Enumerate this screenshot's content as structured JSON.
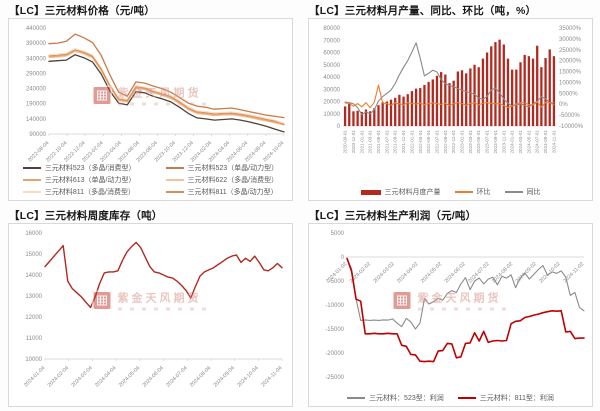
{
  "watermark": {
    "brand": "紫金天风期货"
  },
  "chart_data": [
    {
      "id": "price",
      "type": "line",
      "title": "【LC】三元材料价格（元/吨）",
      "unit": "元/吨",
      "ylim": [
        90000,
        440000
      ],
      "yticks": [
        440000,
        390000,
        340000,
        290000,
        240000,
        190000,
        140000,
        90000
      ],
      "grid": false,
      "legend_position": "bottom",
      "x_labels": [
        "2022-08-04",
        "2022-10-04",
        "2022-12-04",
        "2023-02-04",
        "2023-04-04",
        "2023-06-04",
        "2023-08-04",
        "2023-10-04",
        "2023-12-04",
        "2024-02-04",
        "2024-04-04",
        "2024-06-04",
        "2024-08-04",
        "2024-10-04"
      ],
      "series": [
        {
          "name": "三元材料811（多晶/消费型）",
          "color": "#f7dcc2",
          "width": 1,
          "values": [
            352000,
            354000,
            357000,
            372000,
            364000,
            351000,
            309000,
            254000,
            210000,
            205000,
            250000,
            246000,
            235000,
            227000,
            217000,
            200000,
            180000,
            167000,
            164000,
            160000,
            162000,
            163000,
            159000,
            154000,
            148000,
            142000,
            135000,
            127000
          ]
        },
        {
          "name": "三元材料622（多晶/消费型）",
          "color": "#f2c49e",
          "width": 1,
          "values": [
            342000,
            344000,
            347000,
            362000,
            354000,
            341000,
            299000,
            244000,
            200000,
            195000,
            240000,
            236000,
            225000,
            217000,
            207000,
            190000,
            170000,
            157000,
            154000,
            150000,
            152000,
            153000,
            149000,
            144000,
            138000,
            132000,
            126000,
            119000
          ]
        },
        {
          "name": "三元材料613（单晶/动力型）",
          "color": "#e8a26c",
          "width": 1,
          "values": [
            345000,
            347000,
            350000,
            366000,
            357000,
            344000,
            302000,
            247000,
            203000,
            198000,
            243000,
            239000,
            228000,
            220000,
            210000,
            193000,
            173000,
            160000,
            157000,
            153000,
            155000,
            156000,
            152000,
            147000,
            141000,
            135000,
            129000,
            123000
          ]
        },
        {
          "name": "三元材料811（多晶/动力型）",
          "color": "#d98f56",
          "width": 1,
          "values": [
            348000,
            350000,
            353000,
            368000,
            360000,
            347000,
            305000,
            250000,
            206000,
            201000,
            246000,
            242000,
            231000,
            223000,
            213000,
            196000,
            176000,
            163000,
            160000,
            156000,
            158000,
            159000,
            155000,
            150000,
            144000,
            138000,
            132000,
            121000
          ]
        },
        {
          "name": "三元材料523（单晶/动力型）",
          "color": "#c97b49",
          "width": 1.3,
          "values": [
            388000,
            390000,
            396000,
            420000,
            408000,
            392000,
            350000,
            285000,
            228000,
            215000,
            262000,
            258000,
            248000,
            240000,
            228000,
            210000,
            192000,
            182000,
            178000,
            172000,
            174000,
            176000,
            170000,
            164000,
            158000,
            152000,
            148000,
            144000
          ]
        },
        {
          "name": "三元材料523（多晶/消费型）",
          "color": "#4f423b",
          "width": 1.3,
          "values": [
            330000,
            332000,
            334000,
            352000,
            342000,
            328000,
            288000,
            232000,
            192000,
            186000,
            230000,
            226000,
            214000,
            206000,
            196000,
            178000,
            158000,
            143000,
            140000,
            136000,
            138000,
            140000,
            136000,
            130000,
            123000,
            115000,
            106000,
            97000
          ]
        }
      ],
      "legend": [
        {
          "label": "三元材料523（多晶/消费型）",
          "color": "#4f423b",
          "swatch": "line"
        },
        {
          "label": "三元材料523（单晶/动力型）",
          "color": "#c97b49",
          "swatch": "line"
        },
        {
          "label": "三元材料613（单晶/动力型）",
          "color": "#e8a26c",
          "swatch": "line"
        },
        {
          "label": "三元材料622（多晶/消费型）",
          "color": "#f2c49e",
          "swatch": "line"
        },
        {
          "label": "三元材料811（多晶/消费型）",
          "color": "#f7dcc2",
          "swatch": "line"
        },
        {
          "label": "三元材料811（多晶/动力型）",
          "color": "#d98f56",
          "swatch": "line"
        }
      ]
    },
    {
      "id": "production",
      "type": "bar",
      "title": "【LC】三元材料月产量、同比、环比（吨，%）",
      "unit": "吨，%",
      "ylim": [
        0,
        80000
      ],
      "yticks": [
        80000,
        70000,
        60000,
        50000,
        40000,
        30000,
        20000,
        10000,
        0
      ],
      "y2lim": [
        -10000,
        35000
      ],
      "y2ticks": [
        35000,
        30000,
        25000,
        20000,
        15000,
        10000,
        5000,
        0,
        -5000,
        -10000
      ],
      "y2suffix": "%",
      "baseline": 0,
      "x_labels": [
        "2020-09-01",
        "2020-11-01",
        "2021-01-01",
        "2021-03-01",
        "2021-05-01",
        "2021-07-01",
        "2021-09-01",
        "2021-11-01",
        "2022-01-01",
        "2022-03-01",
        "2022-05-01",
        "2022-07-01",
        "2022-09-01",
        "2022-11-01",
        "2023-01-01",
        "2023-03-01",
        "2023-05-01",
        "2023-07-01",
        "2023-09-01",
        "2023-11-01",
        "2024-01-01",
        "2024-03-01",
        "2024-05-01",
        "2024-07-01",
        "2024-09-01",
        "2024-11-01"
      ],
      "bars": {
        "name": "三元材料月度产量",
        "color": "#b4291e",
        "values": [
          16000,
          18000,
          12000,
          12500,
          11500,
          13500,
          12000,
          14500,
          17000,
          19500,
          20000,
          21500,
          23000,
          25500,
          24000,
          26000,
          28500,
          30500,
          31000,
          33500,
          36000,
          38000,
          41000,
          44000,
          42000,
          35000,
          37000,
          44500,
          45500,
          43000,
          47000,
          50000,
          48000,
          55000,
          60000,
          65000,
          68500,
          70500,
          66500,
          55000,
          46000,
          46000,
          52000,
          58000,
          57000,
          55000,
          65500,
          48000,
          55500,
          62500,
          57000
        ]
      },
      "series": [
        {
          "name": "同比",
          "color": "#8a8a8a",
          "width": 1.1,
          "axis": "right",
          "values": [
            1000,
            700,
            200,
            -1500,
            -4800,
            -3500,
            -4500,
            -2500,
            1500,
            3500,
            5000,
            6500,
            9500,
            13500,
            17000,
            20000,
            24000,
            28200,
            21000,
            13000,
            14200,
            15600,
            14800,
            11400,
            9400,
            8600,
            8000,
            7200,
            6500,
            5800,
            5200,
            4600,
            2800,
            2200,
            3600,
            6600,
            7400,
            5200,
            2400,
            400,
            -800,
            -400,
            200,
            -600,
            -1200,
            200,
            1400,
            3400,
            2600,
            600,
            800
          ]
        },
        {
          "name": "环比",
          "color": "#ED7D31",
          "width": 1.1,
          "axis": "right",
          "values": [
            600,
            400,
            -900,
            300,
            -1200,
            700,
            -1600,
            900,
            8800,
            500,
            300,
            -400,
            600,
            200,
            -300,
            700,
            400,
            100,
            500,
            -200,
            300,
            600,
            300,
            -100,
            400,
            -700,
            200,
            800,
            300,
            -500,
            400,
            600,
            -300,
            500,
            700,
            400,
            200,
            300,
            -600,
            -1500,
            -900,
            100,
            800,
            600,
            -200,
            -400,
            1100,
            -1300,
            800,
            600,
            -200
          ]
        }
      ],
      "legend": [
        {
          "label": "三元材料月度产量",
          "color": "#b4291e",
          "swatch": "bar"
        },
        {
          "label": "环比",
          "color": "#ED7D31",
          "swatch": "line"
        },
        {
          "label": "同比",
          "color": "#8a8a8a",
          "swatch": "line"
        }
      ]
    },
    {
      "id": "inventory",
      "type": "line",
      "title": "【LC】三元材料周度库存（吨）",
      "unit": "吨",
      "ylim": [
        10000,
        16000
      ],
      "yticks": [
        16000,
        15000,
        14000,
        13000,
        12000,
        11000,
        10000
      ],
      "x_labels": [
        "2024-01-04",
        "2024-02-04",
        "2024-03-04",
        "2024-04-04",
        "2024-05-04",
        "2024-06-04",
        "2024-07-04",
        "2024-08-04",
        "2024-09-04",
        "2024-10-04",
        "2024-11-04"
      ],
      "series": [
        {
          "name": "三元材料周度库存",
          "color": "#b02a20",
          "width": 1.4,
          "values": [
            14400,
            14650,
            14900,
            15150,
            15400,
            13700,
            13350,
            13150,
            12950,
            12700,
            12450,
            12950,
            13600,
            14100,
            14150,
            14150,
            14200,
            14700,
            15100,
            15350,
            15550,
            15300,
            14850,
            14400,
            14150,
            14100,
            14000,
            13900,
            13850,
            13700,
            13500,
            13250,
            12900,
            13450,
            13950,
            14150,
            14250,
            14350,
            14500,
            14650,
            14800,
            14900,
            14950,
            14600,
            14800,
            14650,
            14900,
            14600,
            14250,
            14200,
            14350,
            14550,
            14350
          ]
        }
      ],
      "legend": []
    },
    {
      "id": "profit",
      "type": "line",
      "title": "【LC】三元材料生产利润（元/吨）",
      "unit": "元/吨",
      "ylim": [
        -25000,
        5000
      ],
      "yticks": [
        5000,
        0,
        -5000,
        -10000,
        -15000,
        -20000,
        -25000
      ],
      "baseline": 0,
      "x_labels": [
        "2024-01-02",
        "2024-02-02",
        "2024-03-02",
        "2024-04-02",
        "2024-05-02",
        "2024-06-02",
        "2024-07-02",
        "2024-08-02",
        "2024-09-02",
        "2024-10-02",
        "2024-11-02"
      ],
      "series": [
        {
          "name": "三元材料：523型：利润",
          "color": "#8a8a8a",
          "width": 1.1,
          "values": [
            -300,
            -2500,
            -8800,
            -13200,
            -13100,
            -13200,
            -13150,
            -13200,
            -13100,
            -13150,
            -12900,
            -13800,
            -14500,
            -12800,
            -13500,
            -15000,
            -13800,
            -8700,
            -9800,
            -9300,
            -8600,
            -9000,
            -7600,
            -7000,
            -7400,
            -5600,
            -4300,
            -6800,
            -5000,
            -4400,
            -5600,
            -4600,
            -4200,
            -5800,
            -4000,
            -4400,
            -3700,
            -6400,
            -4400,
            -3300,
            -4600,
            -3600,
            -2600,
            -1800,
            -3800,
            -3100,
            -3400,
            -2900,
            -4200,
            -8000,
            -7400,
            -10500,
            -11200
          ]
        },
        {
          "name": "三元材料：811型：利润",
          "color": "#c00000",
          "width": 1.6,
          "values": [
            -300,
            -3000,
            -8800,
            -9200,
            -16000,
            -16000,
            -15900,
            -16000,
            -16000,
            -15900,
            -16000,
            -16000,
            -18400,
            -18600,
            -20300,
            -20400,
            -21700,
            -21800,
            -21700,
            -21800,
            -19600,
            -19500,
            -18000,
            -18100,
            -21000,
            -20800,
            -18000,
            -17900,
            -15800,
            -17500,
            -15500,
            -17800,
            -17500,
            -17400,
            -17500,
            -17400,
            -13900,
            -13400,
            -13300,
            -12600,
            -12400,
            -12100,
            -11900,
            -11600,
            -11400,
            -11200,
            -11300,
            -11200,
            -15600,
            -15500,
            -17000,
            -16900,
            -16900
          ]
        }
      ],
      "legend": [
        {
          "label": "三元材料：523型：利润",
          "color": "#8a8a8a",
          "swatch": "line"
        },
        {
          "label": "三元材料：811型：利润",
          "color": "#c00000",
          "swatch": "line"
        }
      ]
    }
  ]
}
